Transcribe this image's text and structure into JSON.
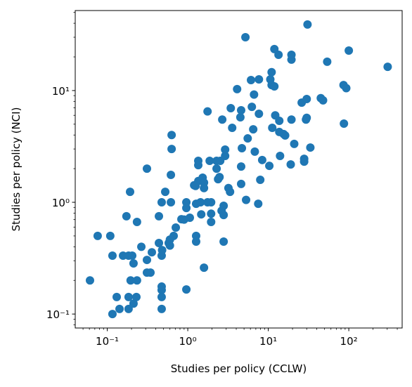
{
  "chart_data": {
    "type": "scatter",
    "xlabel": "Studies per policy (CCLW)",
    "ylabel": "Studies per policy (NCI)",
    "color": "#1f77b4",
    "xscale": "log",
    "yscale": "log",
    "xlim": [
      0.04,
      460
    ],
    "ylim": [
      0.075,
      52
    ],
    "xticks": [
      {
        "value": 0.1,
        "label": "10⁻¹"
      },
      {
        "value": 1,
        "label": "10⁰"
      },
      {
        "value": 10,
        "label": "10¹"
      },
      {
        "value": 100,
        "label": "10²"
      }
    ],
    "yticks": [
      {
        "value": 0.1,
        "label": "10⁻¹"
      },
      {
        "value": 1,
        "label": "10⁰"
      },
      {
        "value": 10,
        "label": "10¹"
      }
    ],
    "xminorticks": [
      0.05,
      0.06,
      0.07,
      0.08,
      0.09,
      0.2,
      0.3,
      0.4,
      0.5,
      0.6,
      0.7,
      0.8,
      0.9,
      2,
      3,
      4,
      5,
      6,
      7,
      8,
      9,
      20,
      30,
      40,
      50,
      60,
      70,
      80,
      90,
      200,
      300,
      400
    ],
    "yminorticks": [
      0.08,
      0.09,
      0.2,
      0.3,
      0.4,
      0.5,
      0.6,
      0.7,
      0.8,
      0.9,
      2,
      3,
      4,
      5,
      6,
      7,
      8,
      9,
      20,
      30,
      40,
      50
    ],
    "x": [
      0.061,
      0.076,
      0.109,
      0.116,
      0.131,
      0.116,
      0.142,
      0.157,
      0.173,
      0.184,
      0.192,
      0.184,
      0.184,
      0.195,
      0.204,
      0.212,
      0.212,
      0.23,
      0.234,
      0.234,
      0.265,
      0.311,
      0.311,
      0.311,
      0.344,
      0.358,
      0.438,
      0.438,
      0.474,
      0.474,
      0.474,
      0.474,
      0.474,
      0.474,
      0.48,
      0.525,
      0.58,
      0.6,
      0.6,
      0.617,
      0.617,
      0.63,
      0.63,
      0.668,
      0.71,
      0.834,
      0.9,
      0.96,
      0.96,
      0.96,
      1.06,
      1.2,
      1.25,
      1.27,
      1.27,
      1.27,
      1.35,
      1.35,
      1.35,
      1.44,
      1.47,
      1.53,
      1.59,
      1.59,
      1.59,
      1.76,
      1.76,
      1.87,
      1.95,
      1.95,
      1.95,
      2.28,
      2.28,
      2.38,
      2.48,
      2.53,
      2.63,
      2.68,
      2.79,
      2.79,
      2.79,
      2.91,
      2.91,
      3.2,
      3.35,
      3.42,
      3.56,
      4.1,
      4.5,
      4.6,
      4.6,
      4.6,
      4.7,
      5.2,
      5.3,
      5.55,
      6.1,
      6.25,
      6.65,
      6.5,
      6.8,
      7.5,
      7.65,
      7.65,
      7.95,
      8.4,
      10.3,
      10.6,
      11.0,
      11.0,
      11.2,
      11.9,
      12.2,
      11.9,
      13.7,
      13.4,
      14.0,
      13.7,
      15.5,
      16.2,
      19.0,
      19.4,
      19.4,
      19.4,
      21.0,
      26.0,
      27.9,
      27.9,
      29.4,
      30.0,
      30.0,
      30.7,
      33.3,
      44.9,
      47.9,
      53.9,
      86,
      87,
      93,
      100,
      304
    ],
    "values": [
      0.2,
      0.5,
      0.5,
      0.333,
      0.142,
      0.1,
      0.111,
      0.333,
      0.75,
      0.333,
      1.24,
      0.111,
      0.142,
      0.2,
      0.333,
      0.284,
      0.124,
      0.142,
      0.2,
      0.667,
      0.4,
      2.0,
      0.235,
      0.305,
      0.235,
      0.357,
      0.432,
      0.75,
      1.0,
      0.176,
      0.164,
      0.142,
      0.111,
      0.333,
      0.373,
      1.24,
      0.432,
      0.464,
      0.41,
      1.0,
      1.76,
      3.0,
      4.0,
      0.5,
      0.594,
      0.706,
      0.7,
      0.89,
      1.0,
      0.166,
      0.727,
      1.42,
      1.4,
      0.97,
      0.445,
      0.5,
      2.35,
      2.15,
      1.55,
      1.0,
      0.78,
      1.66,
      1.5,
      1.34,
      0.26,
      6.5,
      1.0,
      2.35,
      0.667,
      0.79,
      1.0,
      2.0,
      2.35,
      1.61,
      1.68,
      2.35,
      0.84,
      5.5,
      0.445,
      0.77,
      0.93,
      2.6,
      2.96,
      1.34,
      1.24,
      6.96,
      4.64,
      10.3,
      5.76,
      6.66,
      2.09,
      1.46,
      3.05,
      30,
      1.05,
      3.73,
      12.4,
      7.15,
      9.2,
      4.5,
      2.84,
      0.97,
      6.2,
      12.6,
      1.59,
      2.39,
      2.12,
      12.6,
      14.6,
      11.2,
      4.64,
      23.5,
      6.0,
      10.9,
      5.36,
      20.9,
      2.6,
      4.26,
      4.08,
      3.96,
      2.18,
      18.9,
      20.9,
      5.5,
      3.33,
      7.8,
      2.45,
      2.31,
      5.5,
      8.4,
      5.7,
      39,
      3.09,
      8.55,
      8.17,
      18.1,
      11.2,
      5.06,
      10.5,
      22.8,
      16.3
    ]
  }
}
